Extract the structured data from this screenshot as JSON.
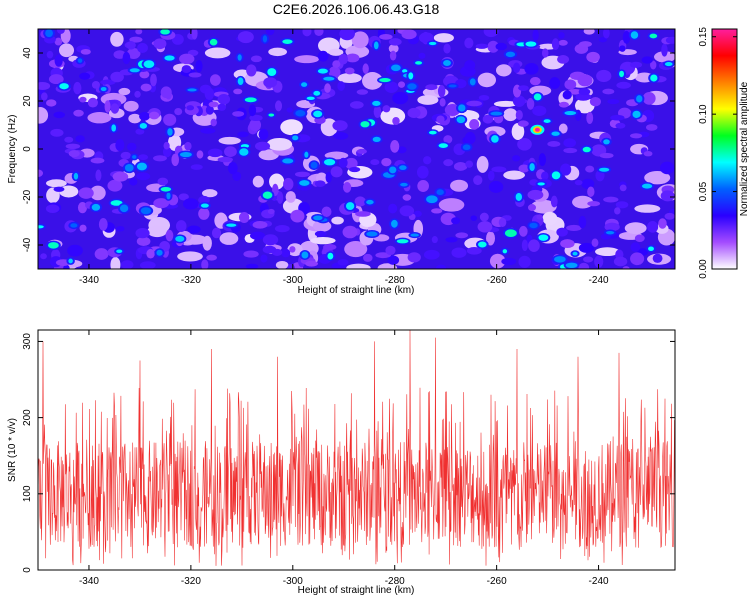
{
  "figure_title": "C2E6.2026.106.06.43.G18",
  "chart_data": [
    {
      "type": "heatmap",
      "title": "C2E6.2026.106.06.43.G18",
      "xlabel": "Height of straight line (km)",
      "ylabel": "Frequency (Hz)",
      "xlim": [
        -350,
        -225
      ],
      "ylim": [
        -50,
        50
      ],
      "xticks": [
        -340,
        -320,
        -300,
        -280,
        -260,
        -240
      ],
      "yticks": [
        -40,
        -20,
        0,
        20,
        40
      ],
      "colorbar": {
        "label": "Normalized spectral amplitude",
        "range": [
          0.0,
          0.155
        ],
        "ticks": [
          0.0,
          0.05,
          0.1,
          0.15
        ],
        "tick_labels": [
          "0.00",
          "0.05",
          "0.10",
          "0.15"
        ],
        "colormap": [
          "#ffffff",
          "#a44cff",
          "#2a00ff",
          "#0060ff",
          "#00ffff",
          "#00ff20",
          "#ffff00",
          "#ff8000",
          "#ff0000",
          "#ff1e9e"
        ]
      },
      "background_level": 0.02,
      "typical_peak": 0.05,
      "max_value": 0.155,
      "max_at": {
        "x": -252,
        "y": 8
      }
    },
    {
      "type": "line",
      "xlabel": "Height of straight line (km)",
      "ylabel": "SNR (10 * v/v)",
      "xlim": [
        -350,
        -225
      ],
      "ylim": [
        0,
        315
      ],
      "xticks": [
        -340,
        -320,
        -300,
        -280,
        -260,
        -240
      ],
      "yticks": [
        0,
        100,
        200,
        300
      ],
      "series": [
        {
          "name": "SNR",
          "color": "#f03030",
          "mean": 95,
          "typical_min": 30,
          "typical_max": 170,
          "peaks": [
            {
              "x": -349,
              "y": 300
            },
            {
              "x": -335,
              "y": 215
            },
            {
              "x": -330,
              "y": 275
            },
            {
              "x": -316,
              "y": 290
            },
            {
              "x": -303,
              "y": 280
            },
            {
              "x": -284,
              "y": 300
            },
            {
              "x": -277,
              "y": 315
            },
            {
              "x": -272,
              "y": 305
            },
            {
              "x": -256,
              "y": 290
            },
            {
              "x": -244,
              "y": 280
            },
            {
              "x": -236,
              "y": 285
            },
            {
              "x": -227,
              "y": 225
            }
          ]
        }
      ]
    }
  ]
}
